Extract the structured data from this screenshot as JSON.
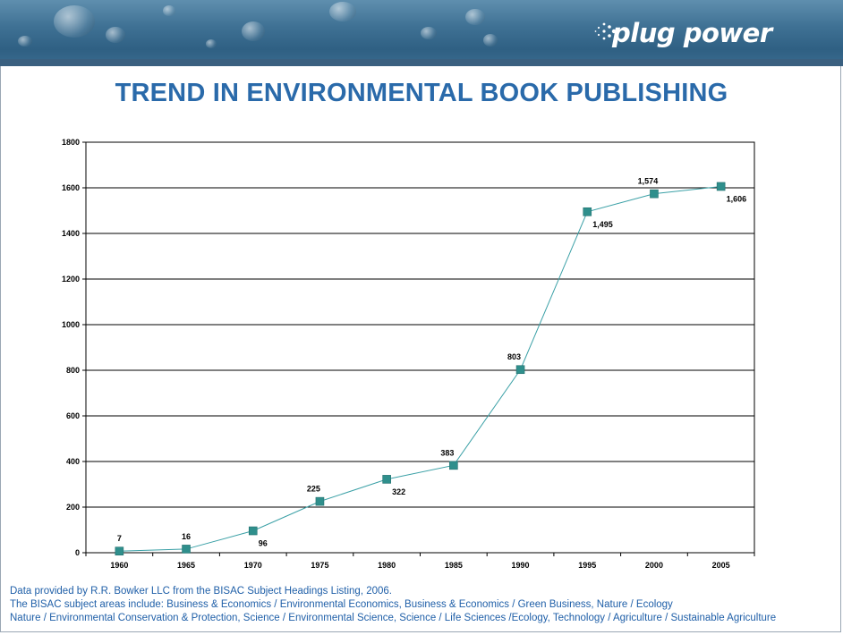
{
  "banner": {
    "logo_text": "plug power"
  },
  "title": "TREND IN ENVIRONMENTAL BOOK PUBLISHING",
  "chart_data": {
    "type": "line",
    "title": "",
    "xlabel": "",
    "ylabel": "",
    "categories": [
      "1960",
      "1965",
      "1970",
      "1975",
      "1980",
      "1985",
      "1990",
      "1995",
      "2000",
      "2005"
    ],
    "values": [
      7,
      16,
      96,
      225,
      322,
      383,
      803,
      1495,
      1574,
      1606
    ],
    "data_labels": [
      "7",
      "16",
      "96",
      "225",
      "322",
      "383",
      "803",
      "1,495",
      "1,574",
      "1,606"
    ],
    "ylim": [
      0,
      1800
    ],
    "yticks": [
      0,
      200,
      400,
      600,
      800,
      1000,
      1200,
      1400,
      1600,
      1800
    ],
    "grid": "horizontal",
    "legend": "none",
    "colors": {
      "line": "#3aa0a6",
      "marker": "#2f8f8c",
      "grid": "#000000"
    }
  },
  "footnote": {
    "lines": [
      "Data provided by R.R. Bowker LLC from the BISAC Subject Headings Listing, 2006.",
      "The BISAC subject areas include: Business & Economics / Environmental Economics, Business & Economics / Green Business, Nature / Ecology",
      "Nature / Environmental Conservation & Protection, Science / Environmental Science, Science / Life Sciences /Ecology, Technology / Agriculture / Sustainable Agriculture"
    ]
  },
  "colors": {
    "title": "#2a6aaa",
    "footnote": "#1f5fa8",
    "banner": "#3f7194"
  }
}
